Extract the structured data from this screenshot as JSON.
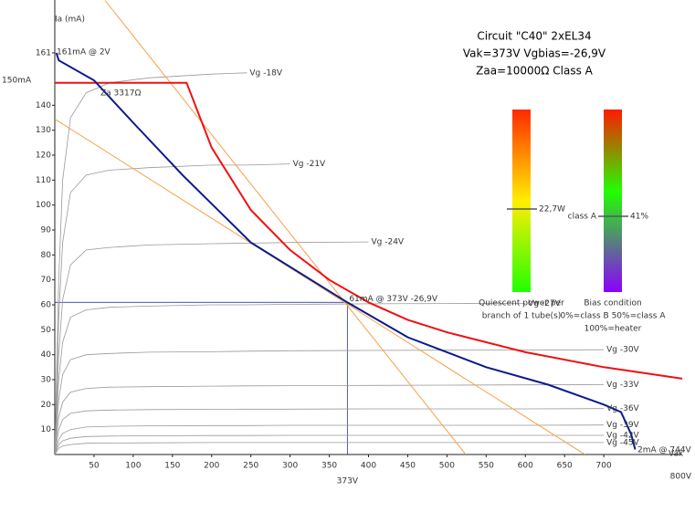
{
  "chart_data": {
    "type": "line",
    "x_label": "Vak",
    "y_label": "Ia (mA)",
    "xlim": [
      0,
      800
    ],
    "ylim": [
      0,
      180
    ],
    "xticks": [
      50,
      100,
      150,
      200,
      250,
      300,
      350,
      400,
      450,
      500,
      550,
      600,
      650,
      700
    ],
    "yticks": [
      10,
      20,
      30,
      40,
      50,
      60,
      70,
      80,
      90,
      100,
      110,
      120,
      130,
      140,
      161
    ],
    "series": [
      {
        "name": "Vg -18V",
        "color": "#999999",
        "x": [
          0,
          5,
          10,
          20,
          40,
          70,
          120,
          200,
          245,
          300,
          400,
          500,
          600,
          700,
          740
        ],
        "values": [
          0,
          70,
          110,
          135,
          145,
          149,
          151,
          152.5,
          153,
          null,
          null,
          null,
          null,
          null,
          null
        ]
      },
      {
        "name": "Vg -21V",
        "color": "#999999",
        "x": [
          0,
          5,
          10,
          20,
          40,
          70,
          120,
          200,
          245,
          300,
          400,
          500,
          600,
          700,
          740
        ],
        "values": [
          0,
          55,
          85,
          105,
          112,
          114,
          115,
          116,
          116,
          116.5,
          null,
          null,
          null,
          null,
          null
        ]
      },
      {
        "name": "Vg -24V",
        "color": "#999999",
        "x": [
          0,
          5,
          10,
          20,
          40,
          70,
          120,
          200,
          245,
          300,
          400,
          500,
          600,
          700,
          740
        ],
        "values": [
          0,
          40,
          62,
          76,
          82,
          83,
          84,
          84.5,
          84.7,
          85,
          85.2,
          null,
          null,
          null,
          null
        ]
      },
      {
        "name": "Vg -27V",
        "color": "#999999",
        "x": [
          0,
          5,
          10,
          20,
          40,
          70,
          120,
          200,
          245,
          300,
          400,
          500,
          600,
          700,
          740
        ],
        "values": [
          0,
          30,
          45,
          55,
          58,
          59,
          59.5,
          60,
          60,
          60.2,
          60.4,
          60.5,
          60.6,
          null,
          null
        ]
      },
      {
        "name": "Vg -30V",
        "color": "#999999",
        "x": [
          0,
          5,
          10,
          20,
          40,
          70,
          120,
          200,
          245,
          300,
          400,
          500,
          600,
          700,
          740
        ],
        "values": [
          0,
          22,
          32,
          38,
          40,
          40.5,
          41,
          41.2,
          41.4,
          41.6,
          41.7,
          41.8,
          41.9,
          42,
          null
        ]
      },
      {
        "name": "Vg -33V",
        "color": "#999999",
        "x": [
          0,
          5,
          10,
          20,
          40,
          70,
          120,
          200,
          245,
          300,
          400,
          500,
          600,
          700,
          740
        ],
        "values": [
          0,
          15,
          21,
          25,
          26.5,
          27,
          27.2,
          27.4,
          27.5,
          27.6,
          27.7,
          27.8,
          27.9,
          28,
          null
        ]
      },
      {
        "name": "Vg -36V",
        "color": "#999999",
        "x": [
          0,
          5,
          10,
          20,
          40,
          70,
          120,
          200,
          245,
          300,
          400,
          500,
          600,
          700,
          740
        ],
        "values": [
          0,
          10,
          14,
          16.5,
          17.5,
          17.8,
          18,
          18.1,
          18.2,
          18.2,
          18.3,
          18.3,
          18.3,
          18.4,
          null
        ]
      },
      {
        "name": "Vg -39V",
        "color": "#999999",
        "x": [
          0,
          5,
          10,
          20,
          40,
          70,
          120,
          200,
          245,
          300,
          400,
          500,
          600,
          700,
          740
        ],
        "values": [
          0,
          6,
          8.5,
          10,
          11,
          11.3,
          11.5,
          11.6,
          11.6,
          11.7,
          11.7,
          11.7,
          11.7,
          11.8,
          null
        ]
      },
      {
        "name": "Vg -42V",
        "color": "#999999",
        "x": [
          0,
          5,
          10,
          20,
          40,
          70,
          120,
          200,
          245,
          300,
          400,
          500,
          600,
          700,
          740
        ],
        "values": [
          0,
          4,
          5.5,
          6.5,
          7.2,
          7.4,
          7.5,
          7.6,
          7.6,
          7.7,
          7.7,
          7.7,
          7.7,
          7.7,
          null
        ]
      },
      {
        "name": "Vg -45V",
        "color": "#999999",
        "x": [
          0,
          5,
          10,
          20,
          40,
          70,
          120,
          200,
          245,
          300,
          400,
          500,
          600,
          700,
          740
        ],
        "values": [
          0,
          2.5,
          3.4,
          4,
          4.5,
          4.6,
          4.7,
          4.8,
          4.8,
          4.8,
          4.8,
          4.8,
          4.8,
          4.8,
          null
        ]
      },
      {
        "color": "#f5a04a",
        "x": [
          0,
          676
        ],
        "values": [
          134.5,
          0
        ]
      },
      {
        "color": "#f5a04a",
        "x": [
          64,
          524
        ],
        "values": [
          182,
          0
        ]
      },
      {
        "color": "#ee1111",
        "x": [
          0,
          168,
          200,
          250,
          300,
          350,
          400,
          450,
          500,
          600,
          700,
          800
        ],
        "values": [
          149,
          149,
          123,
          98,
          82,
          70,
          61,
          54,
          49,
          41,
          35,
          30.4
        ]
      },
      {
        "color": "#0a1a8c",
        "x": [
          2,
          5,
          50,
          100,
          163,
          250,
          373,
          450,
          550,
          629,
          700,
          722,
          735,
          740
        ],
        "values": [
          161,
          158,
          150,
          133,
          112,
          85,
          61,
          47,
          35,
          28,
          20,
          17,
          8,
          2
        ]
      }
    ],
    "operating_point": {
      "x": 373,
      "y": 61,
      "label": "61mA @ 373V -26,9V",
      "x_label": "373V"
    },
    "annotations": [
      "161mA @ 2V",
      "Za 3317Ω",
      "2mA @ 744V",
      "150mA",
      "800V"
    ],
    "info": [
      "Circuit \"C40\" 2xEL34",
      "Vak=373V Vgbias=-26,9V",
      "Zaa=10000Ω Class A"
    ],
    "power_gauge": {
      "reading": "22,7W",
      "caption": [
        "Quiescent power per",
        "branch of 1 tube(s)"
      ]
    },
    "bias_gauge": {
      "state": "class A",
      "reading": "41%",
      "caption": [
        "Bias condition",
        "0%=class B 50%=class A",
        "100%=heater"
      ]
    }
  }
}
